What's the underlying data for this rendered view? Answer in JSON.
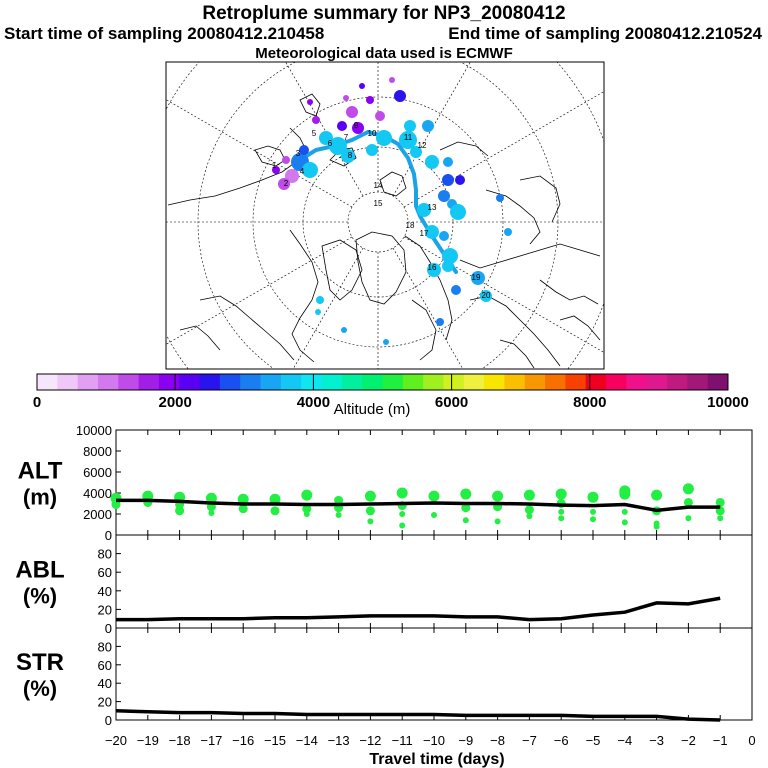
{
  "header": {
    "title": "Retroplume summary for NP3_20080412",
    "start": "Start time of sampling 20080412.210458",
    "end": "End time of sampling 20080412.210524",
    "met": "Meteorological data used is ECMWF"
  },
  "map": {
    "track_color": "#1aa3e6",
    "day_labels": [
      "1",
      "2",
      "3",
      "4",
      "5",
      "6",
      "7",
      "8",
      "9",
      "10",
      "11",
      "12",
      "13",
      "14",
      "15",
      "16",
      "17",
      "18",
      "19",
      "20"
    ]
  },
  "colorbar": {
    "title": "Altitude (m)",
    "tick_labels": [
      "0",
      "2000",
      "4000",
      "6000",
      "8000",
      "10000"
    ],
    "colors": [
      "#f7e6fb",
      "#efc8f7",
      "#e2a0f2",
      "#d478ee",
      "#bf4ce9",
      "#a21ee6",
      "#8a00f0",
      "#5a00f5",
      "#2a14ee",
      "#1a4ff0",
      "#1a7ef0",
      "#18a6f4",
      "#14c8f4",
      "#10e6f0",
      "#00f0d0",
      "#00f0a0",
      "#00f070",
      "#20f040",
      "#60f020",
      "#a0f020",
      "#d0f020",
      "#f0f040",
      "#f8e600",
      "#f8c000",
      "#f89800",
      "#f87000",
      "#f84000",
      "#f00020",
      "#f80060",
      "#f0108c",
      "#e01890",
      "#c01a80",
      "#a01878",
      "#801070"
    ]
  },
  "chart_data": [
    {
      "type": "scatter",
      "name": "ALT",
      "ylabel": "ALT\n(m)",
      "ylabel_line1": "ALT",
      "ylabel_line2": "(m)",
      "xlabel": "",
      "xlim": [
        -20,
        0
      ],
      "ylim": [
        0,
        10000
      ],
      "yticks": [
        0,
        2000,
        4000,
        6000,
        8000,
        10000
      ],
      "tick_labels": [
        "0",
        "2000",
        "4000",
        "6000",
        "8000",
        "10000"
      ],
      "line": {
        "x": [
          -20,
          -19,
          -18,
          -17,
          -16,
          -15,
          -14,
          -13,
          -12,
          -11,
          -10,
          -9,
          -8,
          -7,
          -6,
          -5,
          -4,
          -3,
          -2,
          -1
        ],
        "y": [
          3300,
          3300,
          3200,
          3050,
          2950,
          2950,
          2900,
          2900,
          2950,
          3000,
          3050,
          3000,
          3000,
          2950,
          2850,
          2800,
          2900,
          2350,
          2650,
          2650
        ]
      },
      "points": [
        {
          "x": -20,
          "y": 3500
        },
        {
          "x": -20,
          "y": 2900
        },
        {
          "x": -19,
          "y": 3700
        },
        {
          "x": -19,
          "y": 3100
        },
        {
          "x": -18,
          "y": 3600
        },
        {
          "x": -18,
          "y": 2900
        },
        {
          "x": -18,
          "y": 2300
        },
        {
          "x": -17,
          "y": 3500
        },
        {
          "x": -17,
          "y": 2700
        },
        {
          "x": -17,
          "y": 2100
        },
        {
          "x": -16,
          "y": 3400
        },
        {
          "x": -16,
          "y": 2500
        },
        {
          "x": -15,
          "y": 3400
        },
        {
          "x": -15,
          "y": 2300
        },
        {
          "x": -14,
          "y": 3800
        },
        {
          "x": -14,
          "y": 2500
        },
        {
          "x": -14,
          "y": 2000
        },
        {
          "x": -13,
          "y": 3300
        },
        {
          "x": -13,
          "y": 2600
        },
        {
          "x": -13,
          "y": 1900
        },
        {
          "x": -12,
          "y": 3700
        },
        {
          "x": -12,
          "y": 2300
        },
        {
          "x": -12,
          "y": 1300
        },
        {
          "x": -11,
          "y": 4000
        },
        {
          "x": -11,
          "y": 2800
        },
        {
          "x": -11,
          "y": 2000
        },
        {
          "x": -11,
          "y": 900
        },
        {
          "x": -10,
          "y": 3700
        },
        {
          "x": -10,
          "y": 1900
        },
        {
          "x": -9,
          "y": 3900
        },
        {
          "x": -9,
          "y": 2600
        },
        {
          "x": -9,
          "y": 1400
        },
        {
          "x": -8,
          "y": 3700
        },
        {
          "x": -8,
          "y": 2700
        },
        {
          "x": -8,
          "y": 1300
        },
        {
          "x": -7,
          "y": 3800
        },
        {
          "x": -7,
          "y": 2400
        },
        {
          "x": -7,
          "y": 1800
        },
        {
          "x": -6,
          "y": 3900
        },
        {
          "x": -6,
          "y": 3000
        },
        {
          "x": -6,
          "y": 2200
        },
        {
          "x": -6,
          "y": 1600
        },
        {
          "x": -5,
          "y": 3600
        },
        {
          "x": -5,
          "y": 2200
        },
        {
          "x": -5,
          "y": 1500
        },
        {
          "x": -4,
          "y": 4200
        },
        {
          "x": -4,
          "y": 3900
        },
        {
          "x": -4,
          "y": 2200
        },
        {
          "x": -4,
          "y": 1200
        },
        {
          "x": -3,
          "y": 3800
        },
        {
          "x": -3,
          "y": 2300
        },
        {
          "x": -3,
          "y": 1100
        },
        {
          "x": -3,
          "y": 800
        },
        {
          "x": -2,
          "y": 4400
        },
        {
          "x": -2,
          "y": 3100
        },
        {
          "x": -2,
          "y": 1600
        },
        {
          "x": -1,
          "y": 3100
        },
        {
          "x": -1,
          "y": 2300
        },
        {
          "x": -1,
          "y": 1600
        }
      ],
      "point_color": "#22ee44"
    },
    {
      "type": "line",
      "name": "ABL",
      "ylabel_line1": "ABL",
      "ylabel_line2": "(%)",
      "xlim": [
        -20,
        0
      ],
      "ylim": [
        0,
        100
      ],
      "yticks": [
        0,
        20,
        40,
        60,
        80
      ],
      "tick_labels": [
        "0",
        "20",
        "40",
        "60",
        "80"
      ],
      "x": [
        -20,
        -19,
        -18,
        -17,
        -16,
        -15,
        -14,
        -13,
        -12,
        -11,
        -10,
        -9,
        -8,
        -7,
        -6,
        -5,
        -4,
        -3,
        -2,
        -1
      ],
      "y": [
        9,
        9,
        10,
        10,
        10,
        11,
        11,
        12,
        13,
        13,
        13,
        12,
        12,
        9,
        10,
        14,
        17,
        27,
        26,
        32
      ]
    },
    {
      "type": "line",
      "name": "STR",
      "ylabel_line1": "STR",
      "ylabel_line2": "(%)",
      "xlabel": "Travel time (days)",
      "xlim": [
        -20,
        0
      ],
      "ylim": [
        0,
        100
      ],
      "yticks": [
        0,
        20,
        40,
        60,
        80
      ],
      "tick_labels": [
        "0",
        "20",
        "40",
        "60",
        "80"
      ],
      "xticks": [
        -20,
        -19,
        -18,
        -17,
        -16,
        -15,
        -14,
        -13,
        -12,
        -11,
        -10,
        -9,
        -8,
        -7,
        -6,
        -5,
        -4,
        -3,
        -2,
        -1,
        0
      ],
      "xtick_labels": [
        "−20",
        "−19",
        "−18",
        "−17",
        "−16",
        "−15",
        "−14",
        "−13",
        "−12",
        "−11",
        "−10",
        "−9",
        "−8",
        "−7",
        "−6",
        "−5",
        "−4",
        "−3",
        "−2",
        "−1",
        "0"
      ],
      "x": [
        -20,
        -19,
        -18,
        -17,
        -16,
        -15,
        -14,
        -13,
        -12,
        -11,
        -10,
        -9,
        -8,
        -7,
        -6,
        -5,
        -4,
        -3,
        -2,
        -1
      ],
      "y": [
        10,
        9,
        8,
        8,
        7,
        7,
        6,
        6,
        6,
        6,
        6,
        5,
        5,
        5,
        5,
        4,
        4,
        4,
        1,
        0
      ]
    }
  ]
}
